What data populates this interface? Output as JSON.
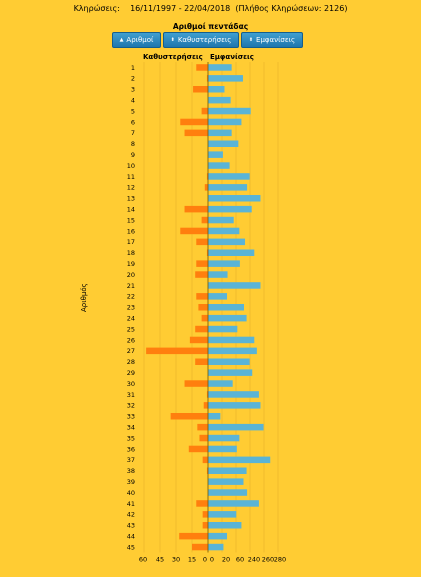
{
  "header": {
    "label": "Κληρώσεις:",
    "range": "16/11/1997 - 22/04/2018",
    "count": "(Πλήθος Κληρώσεων: 2126)"
  },
  "section_title": "Αριθμοί πεντάδας",
  "buttons": [
    {
      "label": "Αριθμοί",
      "icon": "sort-up-icon"
    },
    {
      "label": "Καθυστερήσεις",
      "icon": "sort-up-down-icon"
    },
    {
      "label": "Εμφανίσεις",
      "icon": "sort-up-down-icon"
    }
  ],
  "colors": {
    "background": "#ffcc33",
    "delays": "#ff7f0e",
    "appearances": "#5ab4d6",
    "button": "#2b86bf"
  },
  "chart_data": {
    "type": "bar",
    "orientation": "horizontal",
    "ylabel": "Αριθμός",
    "categories": [
      "1",
      "2",
      "3",
      "4",
      "5",
      "6",
      "7",
      "8",
      "9",
      "10",
      "11",
      "12",
      "13",
      "14",
      "15",
      "16",
      "17",
      "18",
      "19",
      "20",
      "21",
      "22",
      "23",
      "24",
      "25",
      "26",
      "27",
      "28",
      "29",
      "30",
      "31",
      "32",
      "33",
      "34",
      "35",
      "36",
      "37",
      "38",
      "39",
      "40",
      "41",
      "42",
      "43",
      "44",
      "45"
    ],
    "series": [
      {
        "name": "Καθυστερήσεις",
        "direction": "left",
        "axis_ticks": [
          "60",
          "45",
          "30",
          "15",
          "0"
        ],
        "xlim": [
          0,
          60
        ],
        "values": [
          11,
          1,
          14,
          0,
          6,
          26,
          22,
          0,
          0,
          0,
          1,
          3,
          0,
          22,
          6,
          26,
          11,
          1,
          11,
          12,
          0,
          11,
          9,
          6,
          12,
          17,
          58,
          12,
          0,
          22,
          1,
          4,
          35,
          10,
          8,
          18,
          5,
          1,
          0,
          0,
          11,
          5,
          5,
          27,
          15
        ]
      },
      {
        "name": "Εμφανίσεις",
        "direction": "right",
        "axis_ticks": [
          "0",
          "20",
          "60",
          "240",
          "260",
          "280"
        ],
        "xlim": [
          0,
          280
        ],
        "values": [
          92,
          136,
          64,
          88,
          166,
          130,
          92,
          118,
          58,
          84,
          162,
          152,
          204,
          170,
          100,
          122,
          144,
          180,
          124,
          76,
          204,
          74,
          140,
          150,
          114,
          180,
          190,
          162,
          172,
          96,
          198,
          204,
          48,
          216,
          122,
          112,
          242,
          150,
          138,
          152,
          198,
          110,
          130,
          74,
          60
        ]
      }
    ]
  }
}
